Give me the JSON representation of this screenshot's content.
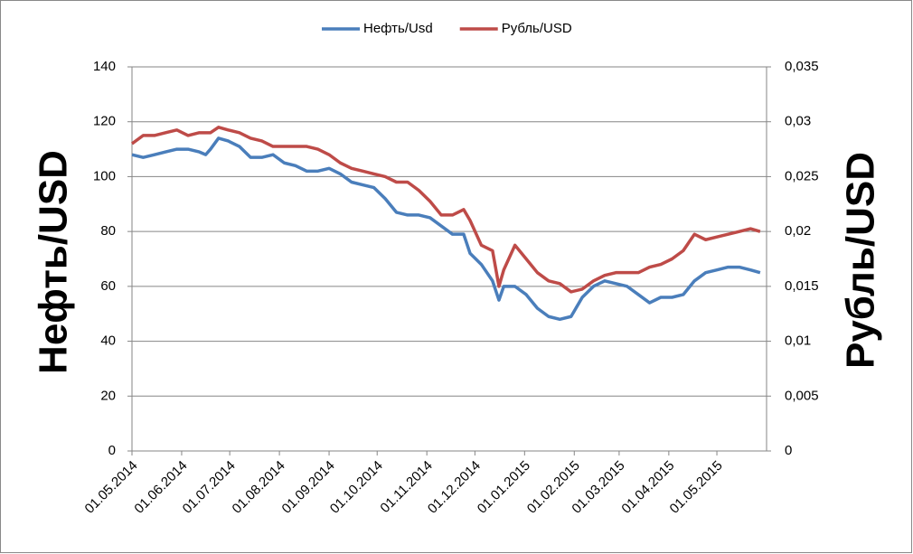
{
  "chart_data": {
    "type": "line",
    "axis_labels": {
      "y": "Нефть/USD",
      "y2": "Рубль/USD"
    },
    "x": [
      "2014-05-01",
      "2014-05-08",
      "2014-05-15",
      "2014-05-22",
      "2014-05-29",
      "2014-06-05",
      "2014-06-12",
      "2014-06-16",
      "2014-06-19",
      "2014-06-24",
      "2014-06-30",
      "2014-07-07",
      "2014-07-14",
      "2014-07-21",
      "2014-07-28",
      "2014-08-04",
      "2014-08-11",
      "2014-08-18",
      "2014-08-25",
      "2014-09-01",
      "2014-09-08",
      "2014-09-15",
      "2014-09-22",
      "2014-09-29",
      "2014-10-06",
      "2014-10-13",
      "2014-10-20",
      "2014-10-27",
      "2014-11-03",
      "2014-11-10",
      "2014-11-17",
      "2014-11-24",
      "2014-11-28",
      "2014-12-05",
      "2014-12-12",
      "2014-12-16",
      "2014-12-19",
      "2014-12-26",
      "2015-01-02",
      "2015-01-09",
      "2015-01-16",
      "2015-01-23",
      "2015-01-30",
      "2015-02-06",
      "2015-02-13",
      "2015-02-20",
      "2015-02-27",
      "2015-03-06",
      "2015-03-13",
      "2015-03-20",
      "2015-03-27",
      "2015-04-03",
      "2015-04-10",
      "2015-04-17",
      "2015-04-24",
      "2015-05-01",
      "2015-05-08",
      "2015-05-15",
      "2015-05-22",
      "2015-05-28"
    ],
    "series": [
      {
        "name": "Нефть/Usd",
        "color": "#4a7ebb",
        "values": [
          108,
          107,
          108,
          109,
          110,
          110,
          109,
          108,
          110,
          114,
          113,
          111,
          107,
          107,
          108,
          105,
          104,
          102,
          102,
          103,
          101,
          98,
          97,
          96,
          92,
          87,
          86,
          86,
          85,
          82,
          79,
          79,
          72,
          68,
          62,
          55,
          60,
          60,
          57,
          52,
          49,
          48,
          49,
          56,
          60,
          62,
          61,
          60,
          57,
          54,
          56,
          56,
          57,
          62,
          65,
          66,
          67,
          67,
          66,
          65
        ]
      },
      {
        "name": "Рубль/USD",
        "color": "#be4b48",
        "axis": "y2",
        "values": [
          0.028,
          0.02875,
          0.02875,
          0.029,
          0.02925,
          0.02875,
          0.029,
          0.029,
          0.029,
          0.0295,
          0.02925,
          0.029,
          0.0285,
          0.02825,
          0.02775,
          0.02775,
          0.02775,
          0.02775,
          0.0275,
          0.027,
          0.02625,
          0.02575,
          0.0255,
          0.02525,
          0.025,
          0.0245,
          0.0245,
          0.02375,
          0.02275,
          0.0215,
          0.0215,
          0.022,
          0.021,
          0.01875,
          0.01825,
          0.015,
          0.0165,
          0.01875,
          0.0175,
          0.01625,
          0.0155,
          0.01525,
          0.0145,
          0.01475,
          0.0155,
          0.016,
          0.01625,
          0.01625,
          0.01625,
          0.01675,
          0.017,
          0.0175,
          0.01825,
          0.01975,
          0.01925,
          0.0195,
          0.01975,
          0.02,
          0.02025,
          0.02
        ]
      }
    ],
    "xlim": [
      "2014-05-01",
      "2015-06-01"
    ],
    "xticks": [
      {
        "value": "2014-05-01",
        "label": "01.05.2014"
      },
      {
        "value": "2014-06-01",
        "label": "01.06.2014"
      },
      {
        "value": "2014-07-01",
        "label": "01.07.2014"
      },
      {
        "value": "2014-08-01",
        "label": "01.08.2014"
      },
      {
        "value": "2014-09-01",
        "label": "01.09.2014"
      },
      {
        "value": "2014-10-01",
        "label": "01.10.2014"
      },
      {
        "value": "2014-11-01",
        "label": "01.11.2014"
      },
      {
        "value": "2014-12-01",
        "label": "01.12.2014"
      },
      {
        "value": "2015-01-01",
        "label": "01.01.2015"
      },
      {
        "value": "2015-02-01",
        "label": "01.02.2015"
      },
      {
        "value": "2015-03-01",
        "label": "01.03.2015"
      },
      {
        "value": "2015-04-01",
        "label": "01.04.2015"
      },
      {
        "value": "2015-05-01",
        "label": "01.05.2015"
      }
    ],
    "ylim": [
      0,
      140
    ],
    "yticks": [
      0,
      20,
      40,
      60,
      80,
      100,
      120,
      140
    ],
    "y2lim": [
      0,
      0.035
    ],
    "y2ticks": [
      0,
      {
        "value": 0.005,
        "label": "0,005"
      },
      {
        "value": 0.01,
        "label": "0,01"
      },
      {
        "value": 0.015,
        "label": "0,015"
      },
      {
        "value": 0.02,
        "label": "0,02"
      },
      {
        "value": 0.025,
        "label": "0,025"
      },
      {
        "value": 0.03,
        "label": "0,03"
      },
      {
        "value": 0.035,
        "label": "0,035"
      }
    ],
    "grid": true,
    "legend": "top"
  }
}
